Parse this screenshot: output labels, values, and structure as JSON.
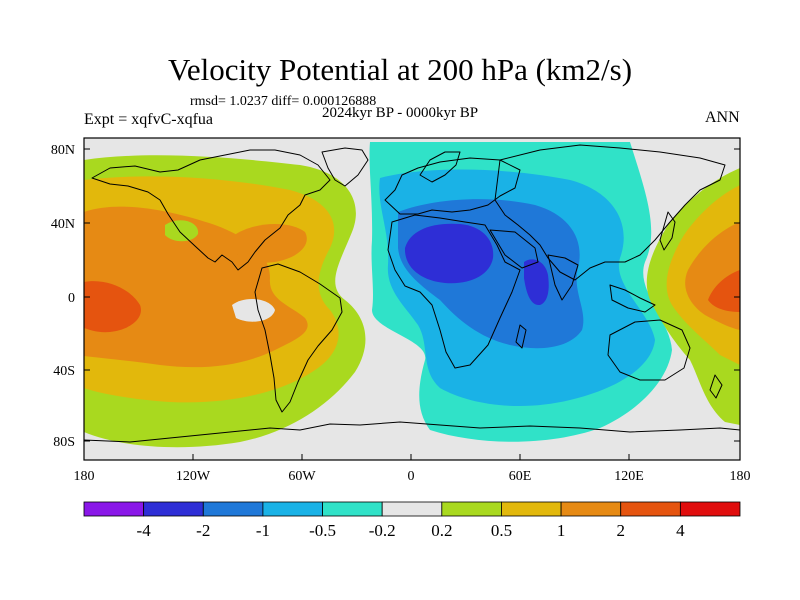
{
  "title": "Velocity Potential at 200 hPa (km2/s)",
  "stats": "rmsd= 1.0237 diff= 0.000126888",
  "subtitle": "2024kyr BP - 0000kyr BP",
  "experiment": "Expt = xqfvC-xqfua",
  "season": "ANN",
  "axes": {
    "x_ticks": [
      "180",
      "120W",
      "60W",
      "0",
      "60E",
      "120E",
      "180"
    ],
    "y_ticks": [
      "80N",
      "40N",
      "0",
      "40S",
      "80S"
    ]
  },
  "colorbar": {
    "labels": [
      "-4",
      "-2",
      "-1",
      "-0.5",
      "-0.2",
      "0.2",
      "0.5",
      "1",
      "2",
      "4"
    ],
    "colors": [
      "#8a17e8",
      "#2e2ed6",
      "#1f78d8",
      "#1ab2e6",
      "#30e2c8",
      "#e6e6e6",
      "#a9d91f",
      "#e2b80c",
      "#e68a14",
      "#e5540f",
      "#e00d0d"
    ]
  },
  "palette": {
    "background": "#e6e6e6",
    "land_outline": "#000000"
  }
}
